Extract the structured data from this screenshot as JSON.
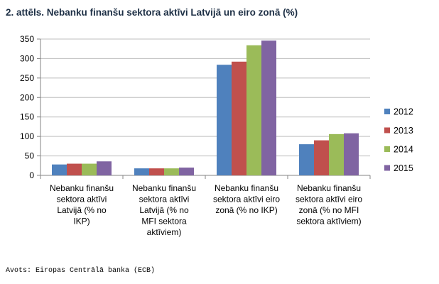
{
  "page": {
    "title": "2. attēls. Nebanku finanšu sektora aktīvi Latvijā un eiro zonā (%)",
    "source": "Avots: Eiropas Centrālā banka (ECB)"
  },
  "chart_data": {
    "type": "bar",
    "title": "2. attēls. Nebanku finanšu sektora aktīvi Latvijā un eiro zonā (%)",
    "xlabel": "",
    "ylabel": "",
    "ylim": [
      0,
      350
    ],
    "yticks": [
      0,
      50,
      100,
      150,
      200,
      250,
      300,
      350
    ],
    "grid": true,
    "legend_position": "right",
    "categories": [
      [
        "Nebanku finanšu",
        "sektora aktīvi",
        "Latvijā (% no",
        "IKP)"
      ],
      [
        "Nebanku finanšu",
        "sektora aktīvi",
        "Latvijā (% no",
        "MFI sektora",
        "aktīviem)"
      ],
      [
        "Nebanku finanšu",
        "sektora aktīvi eiro",
        "zonā (% no IKP)"
      ],
      [
        "Nebanku finanšu",
        "sektora aktīvi eiro",
        "zonā (% no MFI",
        "sektora aktīviem)"
      ]
    ],
    "series": [
      {
        "name": "2012",
        "color": "#4f81bd",
        "values": [
          28,
          18,
          284,
          80
        ]
      },
      {
        "name": "2013",
        "color": "#c0504d",
        "values": [
          30,
          18,
          292,
          90
        ]
      },
      {
        "name": "2014",
        "color": "#9bbb59",
        "values": [
          30,
          18,
          334,
          106
        ]
      },
      {
        "name": "2015",
        "color": "#8064a2",
        "values": [
          36,
          20,
          346,
          108
        ]
      }
    ]
  }
}
